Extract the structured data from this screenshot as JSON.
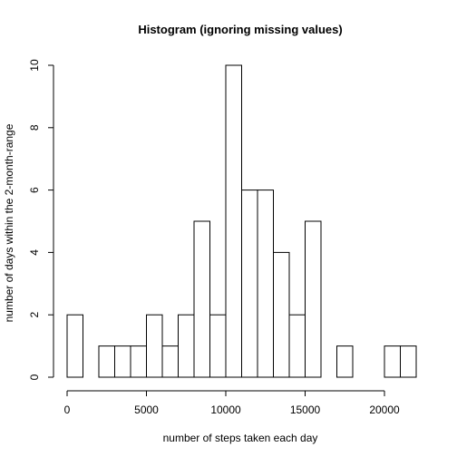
{
  "chart_data": {
    "type": "bar",
    "title": "Histogram (ignoring missing values)",
    "xlabel": "number of steps taken each day",
    "ylabel": "number of days within the 2-month-range",
    "bin_width": 1000,
    "bin_starts": [
      0,
      1000,
      2000,
      3000,
      4000,
      5000,
      6000,
      7000,
      8000,
      9000,
      10000,
      11000,
      12000,
      13000,
      14000,
      15000,
      16000,
      17000,
      18000,
      19000,
      20000,
      21000
    ],
    "values": [
      2,
      0,
      1,
      1,
      1,
      2,
      1,
      2,
      5,
      2,
      10,
      6,
      6,
      4,
      2,
      5,
      0,
      1,
      0,
      0,
      1,
      1
    ],
    "xlim": [
      0,
      22000
    ],
    "ylim": [
      0,
      10
    ],
    "xticks": [
      0,
      5000,
      10000,
      15000,
      20000
    ],
    "yticks": [
      0,
      2,
      4,
      6,
      8,
      10
    ],
    "grid": false,
    "bar_fill": "#ffffff",
    "bar_stroke": "#000000"
  }
}
